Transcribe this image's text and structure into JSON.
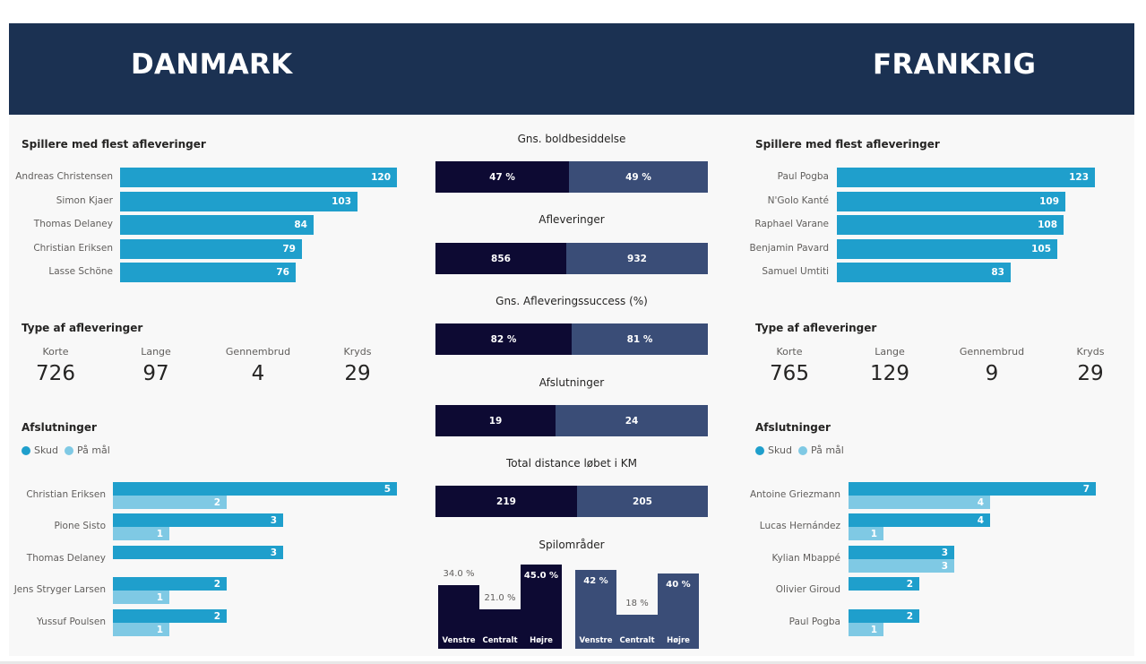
{
  "header": {
    "left_country": "DANMARK",
    "right_country": "FRANKRIG"
  },
  "colors": {
    "header_bg": "#1b3152",
    "bar_primary": "#1f9fcc",
    "bar_secondary": "#7fc9e4",
    "denmark_dark": "#0d0a33",
    "france_slate": "#3a4d77"
  },
  "left": {
    "top_passers": {
      "title": "Spillere med flest afleveringer",
      "players": [
        {
          "name": "Andreas Christensen",
          "value": 120
        },
        {
          "name": "Simon Kjaer",
          "value": 103
        },
        {
          "name": "Thomas Delaney",
          "value": 84
        },
        {
          "name": "Christian Eriksen",
          "value": 79
        },
        {
          "name": "Lasse Schöne",
          "value": 76
        }
      ]
    },
    "pass_types": {
      "title": "Type af afleveringer",
      "items": [
        {
          "label": "Korte",
          "value": "726"
        },
        {
          "label": "Lange",
          "value": "97"
        },
        {
          "label": "Gennembrud",
          "value": "4"
        },
        {
          "label": "Kryds",
          "value": "29"
        }
      ]
    },
    "shots": {
      "title": "Afslutninger",
      "legend": {
        "shots": "Skud",
        "on_target": "På mål"
      },
      "players": [
        {
          "name": "Christian Eriksen",
          "shots": 5,
          "on_target": 2
        },
        {
          "name": "Pione Sisto",
          "shots": 3,
          "on_target": 1
        },
        {
          "name": "Thomas Delaney",
          "shots": 3,
          "on_target": null
        },
        {
          "name": "Jens Stryger Larsen",
          "shots": 2,
          "on_target": 1
        },
        {
          "name": "Yussuf Poulsen",
          "shots": 2,
          "on_target": 1
        }
      ]
    }
  },
  "right": {
    "top_passers": {
      "title": "Spillere med flest afleveringer",
      "players": [
        {
          "name": "Paul Pogba",
          "value": 123
        },
        {
          "name": "N'Golo Kanté",
          "value": 109
        },
        {
          "name": "Raphael Varane",
          "value": 108
        },
        {
          "name": "Benjamin Pavard",
          "value": 105
        },
        {
          "name": "Samuel Umtiti",
          "value": 83
        }
      ]
    },
    "pass_types": {
      "title": "Type af afleveringer",
      "items": [
        {
          "label": "Korte",
          "value": "765"
        },
        {
          "label": "Lange",
          "value": "129"
        },
        {
          "label": "Gennembrud",
          "value": "9"
        },
        {
          "label": "Kryds",
          "value": "29"
        }
      ]
    },
    "shots": {
      "title": "Afslutninger",
      "legend": {
        "shots": "Skud",
        "on_target": "På mål"
      },
      "players": [
        {
          "name": "Antoine Griezmann",
          "shots": 7,
          "on_target": 4
        },
        {
          "name": "Lucas Hernández",
          "shots": 4,
          "on_target": 1
        },
        {
          "name": "Kylian Mbappé",
          "shots": 3,
          "on_target": 3
        },
        {
          "name": "Olivier Giroud",
          "shots": 2,
          "on_target": null
        },
        {
          "name": "Paul Pogba",
          "shots": 2,
          "on_target": 1
        }
      ]
    }
  },
  "center": {
    "comparisons": [
      {
        "title": "Gns. boldbesiddelse",
        "left": 47,
        "right": 49,
        "left_label": "47 %",
        "right_label": "49 %"
      },
      {
        "title": "Afleveringer",
        "left": 856,
        "right": 932,
        "left_label": "856",
        "right_label": "932"
      },
      {
        "title": "Gns. Afleveringssuccess (%)",
        "left": 82,
        "right": 81,
        "left_label": "82 %",
        "right_label": "81 %"
      },
      {
        "title": "Afslutninger",
        "left": 19,
        "right": 24,
        "left_label": "19",
        "right_label": "24"
      },
      {
        "title": "Total distance løbet i KM",
        "left": 219,
        "right": 205,
        "left_label": "219",
        "right_label": "205"
      }
    ],
    "areas": {
      "title": "Spilområder",
      "denmark": [
        {
          "category": "Venstre",
          "value": 34.0,
          "label": "34.0 %"
        },
        {
          "category": "Centralt",
          "value": 21.0,
          "label": "21.0 %"
        },
        {
          "category": "Højre",
          "value": 45.0,
          "label": "45.0 %"
        }
      ],
      "france": [
        {
          "category": "Venstre",
          "value": 42,
          "label": "42 %"
        },
        {
          "category": "Centralt",
          "value": 18,
          "label": "18 %"
        },
        {
          "category": "Højre",
          "value": 40,
          "label": "40 %"
        }
      ]
    }
  },
  "chart_data": [
    {
      "type": "bar",
      "title": "Spillere med flest afleveringer",
      "categories": [
        "Andreas Christensen",
        "Simon Kjaer",
        "Thomas Delaney",
        "Christian Eriksen",
        "Lasse Schöne"
      ],
      "values": [
        120,
        103,
        84,
        79,
        76
      ]
    },
    {
      "type": "bar",
      "title": "Afslutninger",
      "categories": [
        "Christian Eriksen",
        "Pione Sisto",
        "Thomas Delaney",
        "Jens Stryger Larsen",
        "Yussuf Poulsen"
      ],
      "series": [
        {
          "name": "Skud",
          "values": [
            5,
            3,
            3,
            2,
            2
          ]
        },
        {
          "name": "På mål",
          "values": [
            2,
            1,
            null,
            1,
            1
          ]
        }
      ]
    },
    {
      "type": "bar",
      "title": "Spillere med flest afleveringer",
      "categories": [
        "Paul Pogba",
        "N'Golo Kanté",
        "Raphael Varane",
        "Benjamin Pavard",
        "Samuel Umtiti"
      ],
      "values": [
        123,
        109,
        108,
        105,
        83
      ]
    },
    {
      "type": "bar",
      "title": "Afslutninger",
      "categories": [
        "Antoine Griezmann",
        "Lucas Hernández",
        "Kylian Mbappé",
        "Olivier Giroud",
        "Paul Pogba"
      ],
      "series": [
        {
          "name": "Skud",
          "values": [
            7,
            4,
            3,
            2,
            2
          ]
        },
        {
          "name": "På mål",
          "values": [
            4,
            1,
            3,
            null,
            1
          ]
        }
      ]
    },
    {
      "type": "bar",
      "title": "Gns. boldbesiddelse",
      "categories": [
        "DANMARK",
        "FRANKRIG"
      ],
      "values": [
        47,
        49
      ]
    },
    {
      "type": "bar",
      "title": "Afleveringer",
      "categories": [
        "DANMARK",
        "FRANKRIG"
      ],
      "values": [
        856,
        932
      ]
    },
    {
      "type": "bar",
      "title": "Gns. Afleveringssuccess (%)",
      "categories": [
        "DANMARK",
        "FRANKRIG"
      ],
      "values": [
        82,
        81
      ]
    },
    {
      "type": "bar",
      "title": "Afslutninger",
      "categories": [
        "DANMARK",
        "FRANKRIG"
      ],
      "values": [
        19,
        24
      ]
    },
    {
      "type": "bar",
      "title": "Total distance løbet i KM",
      "categories": [
        "DANMARK",
        "FRANKRIG"
      ],
      "values": [
        219,
        205
      ]
    },
    {
      "type": "bar",
      "title": "Spilområder",
      "categories": [
        "Venstre",
        "Centralt",
        "Højre"
      ],
      "series": [
        {
          "name": "DANMARK",
          "values": [
            34.0,
            21.0,
            45.0
          ]
        },
        {
          "name": "FRANKRIG",
          "values": [
            42,
            18,
            40
          ]
        }
      ]
    }
  ]
}
